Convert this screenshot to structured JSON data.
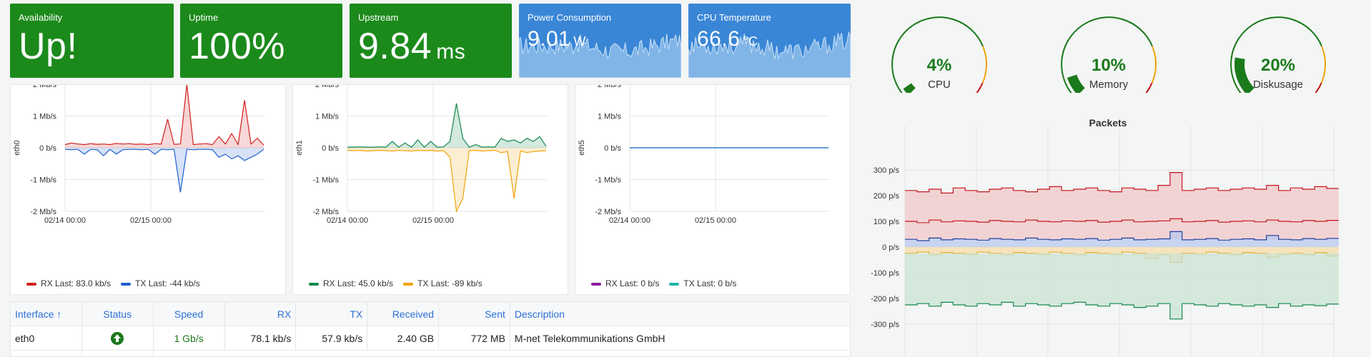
{
  "stats": [
    {
      "title": "Availability",
      "value": "Up!",
      "unit": ""
    },
    {
      "title": "Uptime",
      "value": "100%",
      "unit": ""
    },
    {
      "title": "Upstream",
      "value": "9.84",
      "unit": "ms"
    },
    {
      "title": "Power Consumption",
      "value": "9.01",
      "unit": "W"
    },
    {
      "title": "CPU Temperature",
      "value": "66.6",
      "unit": "°C"
    }
  ],
  "colors": {
    "green_tile": "#1b8a1b",
    "blue_tile": "#3a86d6",
    "rx_eth0": "#d11f1f",
    "tx_eth0": "#1f5fd1",
    "rx_eth1": "#13874c",
    "tx_eth1": "#f0a30a",
    "rx_eth5": "#8e1c9e",
    "tx_eth5": "#1fb5a8",
    "gauge_ok": "#1b7a1b",
    "gauge_warn": "#f0a30a",
    "gauge_crit": "#c4161c"
  },
  "chart_data": [
    {
      "type": "line",
      "ylabel": "eth0",
      "yticks": [
        "2 Mb/s",
        "1 Mb/s",
        "0 b/s",
        "-1 Mb/s",
        "-2 Mb/s"
      ],
      "xticks": [
        "02/14 00:00",
        "02/15 00:00"
      ],
      "ylim": [
        -2,
        2
      ],
      "series": [
        {
          "name": "RX",
          "legend": "RX  Last: 83.0 kb/s",
          "values": [
            0.1,
            0.15,
            0.12,
            0.1,
            0.13,
            0.11,
            0.12,
            0.1,
            0.14,
            0.12,
            0.13,
            0.11,
            0.12,
            0.1,
            0.13,
            0.12,
            0.9,
            0.11,
            0.12,
            2.0,
            0.1,
            0.12,
            0.13,
            0.1,
            0.35,
            0.12,
            0.45,
            0.1,
            1.5,
            0.12,
            0.3,
            0.08
          ]
        },
        {
          "name": "TX",
          "legend": "TX  Last: -44 kb/s",
          "values": [
            -0.05,
            -0.06,
            -0.05,
            -0.2,
            -0.05,
            -0.06,
            -0.25,
            -0.05,
            -0.2,
            -0.06,
            -0.05,
            -0.05,
            -0.06,
            -0.05,
            -0.2,
            -0.05,
            -0.06,
            -0.05,
            -1.4,
            -0.05,
            -0.06,
            -0.05,
            -0.05,
            -0.06,
            -0.3,
            -0.2,
            -0.35,
            -0.25,
            -0.4,
            -0.3,
            -0.2,
            -0.04
          ]
        }
      ]
    },
    {
      "type": "line",
      "ylabel": "eth1",
      "yticks": [
        "2 Mb/s",
        "1 Mb/s",
        "0 b/s",
        "-1 Mb/s",
        "-2 Mb/s"
      ],
      "xticks": [
        "02/14 00:00",
        "02/15 00:00"
      ],
      "ylim": [
        -2,
        2
      ],
      "series": [
        {
          "name": "RX",
          "legend": "RX  Last: 45.0 kb/s",
          "values": [
            0.02,
            0.02,
            0.03,
            0.02,
            0.02,
            0.03,
            0.02,
            0.2,
            0.02,
            0.15,
            0.02,
            0.25,
            0.02,
            0.2,
            0.02,
            0.03,
            0.2,
            1.4,
            0.3,
            0.02,
            0.1,
            0.02,
            0.03,
            0.02,
            0.3,
            0.2,
            0.25,
            0.15,
            0.3,
            0.2,
            0.35,
            0.05
          ]
        },
        {
          "name": "TX",
          "legend": "TX  Last: -89 kb/s",
          "values": [
            -0.08,
            -0.09,
            -0.08,
            -0.1,
            -0.09,
            -0.08,
            -0.09,
            -0.1,
            -0.08,
            -0.09,
            -0.1,
            -0.08,
            -0.09,
            -0.08,
            -0.1,
            -0.09,
            -0.3,
            -2.0,
            -1.6,
            -0.09,
            -0.08,
            -0.1,
            -0.09,
            -0.08,
            -0.15,
            -0.12,
            -1.6,
            -0.1,
            -0.15,
            -0.12,
            -0.1,
            -0.09
          ]
        }
      ]
    },
    {
      "type": "line",
      "ylabel": "eth5",
      "yticks": [
        "2 Mb/s",
        "1 Mb/s",
        "0 b/s",
        "-1 Mb/s",
        "-2 Mb/s"
      ],
      "xticks": [
        "02/14 00:00",
        "02/15 00:00"
      ],
      "ylim": [
        -2,
        2
      ],
      "series": [
        {
          "name": "RX",
          "legend": "RX  Last: 0 b/s",
          "values": [
            0,
            0
          ]
        },
        {
          "name": "TX",
          "legend": "TX  Last: 0 b/s",
          "values": [
            0,
            0
          ]
        }
      ]
    },
    {
      "type": "area",
      "title": "Packets",
      "yticks": [
        "300 p/s",
        "200 p/s",
        "100 p/s",
        "0 p/s",
        "-100 p/s",
        "-200 p/s",
        "-300 p/s"
      ],
      "ylim": [
        -300,
        300
      ],
      "series": [
        {
          "values": [
            220,
            215,
            225,
            210,
            230,
            220,
            215,
            225,
            230,
            220,
            215,
            225,
            235,
            220,
            225,
            230,
            220,
            215,
            230,
            225,
            220,
            240,
            290,
            220,
            225,
            230,
            220,
            225,
            230,
            225,
            240,
            220,
            230,
            225,
            235,
            228
          ]
        },
        {
          "values": [
            100,
            95,
            105,
            98,
            102,
            100,
            97,
            103,
            100,
            98,
            105,
            100,
            98,
            102,
            100,
            103,
            97,
            100,
            105,
            98,
            100,
            102,
            110,
            98,
            100,
            103,
            97,
            100,
            102,
            98,
            105,
            100,
            98,
            103,
            100,
            104
          ]
        },
        {
          "values": [
            30,
            25,
            35,
            28,
            32,
            30,
            27,
            33,
            30,
            28,
            35,
            30,
            28,
            32,
            30,
            33,
            27,
            30,
            35,
            28,
            30,
            32,
            60,
            28,
            30,
            33,
            27,
            30,
            32,
            28,
            45,
            30,
            28,
            33,
            30,
            34
          ]
        },
        {
          "values": [
            -25,
            -20,
            -30,
            -22,
            -25,
            -28,
            -20,
            -25,
            -30,
            -22,
            -25,
            -28,
            -20,
            -25,
            -30,
            -22,
            -25,
            -28,
            -20,
            -25,
            -45,
            -30,
            -60,
            -25,
            -28,
            -20,
            -25,
            -30,
            -22,
            -25,
            -40,
            -28,
            -25,
            -30,
            -22,
            -35
          ]
        },
        {
          "values": [
            -225,
            -220,
            -230,
            -215,
            -225,
            -230,
            -220,
            -225,
            -215,
            -230,
            -220,
            -225,
            -230,
            -220,
            -215,
            -225,
            -230,
            -220,
            -225,
            -235,
            -230,
            -220,
            -280,
            -220,
            -225,
            -230,
            -220,
            -225,
            -230,
            -225,
            -235,
            -220,
            -230,
            -225,
            -228,
            -222
          ]
        }
      ]
    }
  ],
  "gauges": [
    {
      "label": "CPU",
      "value": "4%",
      "fraction": 0.04
    },
    {
      "label": "Memory",
      "value": "10%",
      "fraction": 0.1
    },
    {
      "label": "Diskusage",
      "value": "20%",
      "fraction": 0.2
    }
  ],
  "table": {
    "headers": [
      "Interface ↑",
      "Status",
      "Speed",
      "RX",
      "TX",
      "Received",
      "Sent",
      "Description"
    ],
    "rows": [
      [
        "eth0",
        "up-icon",
        "1 Gb/s",
        "78.1 kb/s",
        "57.9 kb/s",
        "2.40 GB",
        "772 MB",
        "M-net Telekommunikations GmbH"
      ]
    ]
  }
}
